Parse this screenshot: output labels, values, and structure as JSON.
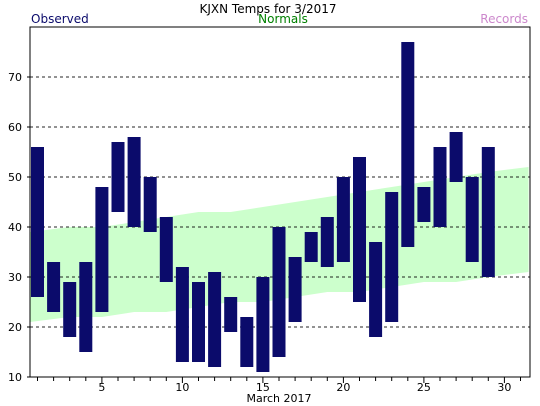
{
  "chart_data": {
    "type": "bar",
    "title": "KJXN Temps for 3/2017",
    "xlabel": "March 2017",
    "ylabel": "",
    "ylim": [
      10,
      80
    ],
    "xlim": [
      0.5,
      31.5
    ],
    "yticks": [
      10,
      20,
      30,
      40,
      50,
      60,
      70
    ],
    "xticks": [
      5,
      10,
      15,
      20,
      25,
      30
    ],
    "grid": "horizontal-dashed",
    "legend": {
      "placement": "top",
      "observed": "Observed",
      "normals": "Normals",
      "records": "Records"
    },
    "colors": {
      "observed": "#0b0b6b",
      "normals_fill": "#ccffcc",
      "normals_text": "#008000",
      "records_text": "#cc88cc"
    },
    "observed": {
      "days": [
        1,
        2,
        3,
        4,
        5,
        6,
        7,
        8,
        9,
        10,
        11,
        12,
        13,
        14,
        15,
        16,
        17,
        18,
        19,
        20,
        21,
        22,
        23,
        24,
        25,
        26,
        27,
        28,
        29
      ],
      "high": [
        56,
        33,
        29,
        33,
        48,
        57,
        58,
        50,
        42,
        32,
        29,
        31,
        26,
        22,
        30,
        40,
        34,
        39,
        42,
        50,
        54,
        37,
        47,
        77,
        48,
        56,
        59,
        50,
        56
      ],
      "low": [
        26,
        23,
        18,
        15,
        23,
        43,
        40,
        39,
        29,
        13,
        13,
        12,
        19,
        12,
        11,
        14,
        21,
        33,
        32,
        33,
        25,
        18,
        21,
        36,
        41,
        40,
        49,
        33,
        30
      ]
    },
    "normals": {
      "days": [
        0.5,
        3,
        5,
        7,
        9,
        11,
        13,
        15,
        17,
        19,
        21,
        23,
        25,
        27,
        29,
        31.5
      ],
      "high": [
        39,
        40,
        40,
        41,
        42,
        43,
        43,
        44,
        45,
        46,
        47,
        48,
        49,
        50,
        51,
        52
      ],
      "low": [
        21,
        22,
        22,
        23,
        23,
        24,
        25,
        25,
        26,
        27,
        27,
        28,
        29,
        29,
        30,
        31
      ]
    }
  }
}
